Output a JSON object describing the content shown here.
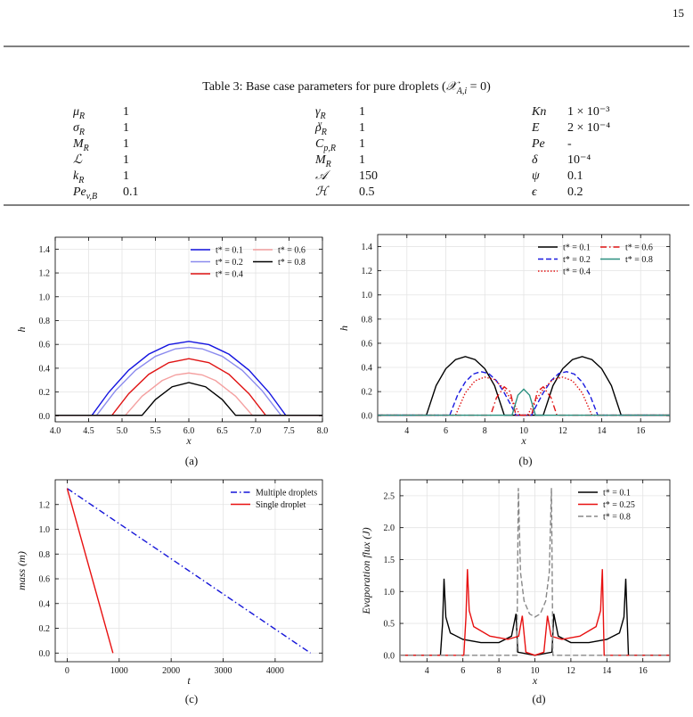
{
  "page_number": "15",
  "table": {
    "caption": {
      "pre": "Table 3: Base case parameters for pure droplets (",
      "sym": "𝒳",
      "sub": "A,i",
      "post": " = 0)"
    },
    "rows": [
      [
        {
          "sym": "μ",
          "sub": "R",
          "value": "1"
        },
        {
          "sym": "γ",
          "sub": "R",
          "value": "1"
        },
        {
          "sym": "Kn",
          "value": "1 × 10⁻³"
        }
      ],
      [
        {
          "sym": "σ",
          "sub": "R",
          "value": "1"
        },
        {
          "sym": "ρ",
          "sub": "R",
          "sup": "v",
          "value": "1"
        },
        {
          "sym": "E",
          "value": "2 × 10⁻⁴"
        }
      ],
      [
        {
          "sym": "M",
          "sub": "R",
          "value": "1"
        },
        {
          "sym": "C",
          "sub": "p,R",
          "value": "1"
        },
        {
          "sym": "Pe",
          "value": "-"
        }
      ],
      [
        {
          "sym": "ℒ",
          "value": "1"
        },
        {
          "sym": "M",
          "sub": "R",
          "value": "1"
        },
        {
          "sym": "δ",
          "value": "10⁻⁴"
        }
      ],
      [
        {
          "sym": "k",
          "sub": "R",
          "value": "1"
        },
        {
          "sym": "𝒜",
          "value": "150"
        },
        {
          "sym": "ψ",
          "value": "0.1"
        }
      ],
      [
        {
          "sym": "Pe",
          "sub": "v,B",
          "value": "0.1"
        },
        {
          "sym": "ℋ",
          "value": "0.5"
        },
        {
          "sym": "ϵ",
          "value": "0.2"
        }
      ]
    ]
  },
  "chart_data": [
    {
      "type": "line",
      "caption": "(a)",
      "x_label": "x",
      "y_label": "h",
      "grid": true,
      "xlim": [
        4,
        8
      ],
      "ylim": [
        -0.05,
        1.5
      ],
      "xticks": [
        {
          "value": 4,
          "label": "4.0"
        },
        4.5,
        {
          "value": 5,
          "label": "5.0"
        },
        5.5,
        {
          "value": 6,
          "label": "6.0"
        },
        6.5,
        {
          "value": 7,
          "label": "7.0"
        },
        7.5,
        {
          "value": 8,
          "label": "8.0"
        }
      ],
      "yticks": [
        {
          "value": 0,
          "label": "0.0"
        },
        0.2,
        0.4,
        0.6,
        0.8,
        {
          "value": 1,
          "label": "1.0"
        },
        1.2,
        1.4
      ],
      "legend_loc": "upper right",
      "legend_ncol": 2,
      "series": [
        {
          "name": "t* = 0.1",
          "color": "#1414e0",
          "linestyle": "solid",
          "x": [
            4,
            4.55,
            4.8,
            5.1,
            5.4,
            5.7,
            6,
            6.3,
            6.6,
            6.9,
            7.2,
            7.45,
            8
          ],
          "values": [
            0.005,
            0.005,
            0.197,
            0.384,
            0.518,
            0.598,
            0.625,
            0.598,
            0.518,
            0.384,
            0.197,
            0.005,
            0.005
          ]
        },
        {
          "name": "t* = 0.2",
          "color": "#8a8aee",
          "linestyle": "solid",
          "x": [
            4,
            4.62,
            4.9,
            5.2,
            5.5,
            5.8,
            6,
            6.2,
            6.5,
            6.8,
            7.1,
            7.38,
            8
          ],
          "values": [
            0.005,
            0.005,
            0.21,
            0.382,
            0.5,
            0.563,
            0.575,
            0.563,
            0.5,
            0.382,
            0.21,
            0.005,
            0.005
          ]
        },
        {
          "name": "t* = 0.4",
          "color": "#e01414",
          "linestyle": "solid",
          "x": [
            4,
            4.85,
            5.1,
            5.4,
            5.7,
            6,
            6.3,
            6.6,
            6.9,
            7.15,
            8
          ],
          "values": [
            0.005,
            0.005,
            0.186,
            0.349,
            0.447,
            0.48,
            0.447,
            0.349,
            0.186,
            0.005,
            0.005
          ]
        },
        {
          "name": "t* = 0.6",
          "color": "#f4a0a0",
          "linestyle": "solid",
          "x": [
            4,
            5.05,
            5.3,
            5.6,
            5.8,
            6,
            6.2,
            6.4,
            6.7,
            6.95,
            8
          ],
          "values": [
            0.005,
            0.005,
            0.165,
            0.296,
            0.344,
            0.36,
            0.344,
            0.296,
            0.165,
            0.005,
            0.005
          ]
        },
        {
          "name": "t* = 0.8",
          "color": "#000000",
          "linestyle": "solid",
          "x": [
            4,
            5.3,
            5.5,
            5.75,
            6,
            6.25,
            6.5,
            6.7,
            8
          ],
          "values": [
            0.005,
            0.005,
            0.137,
            0.244,
            0.28,
            0.244,
            0.137,
            0.005,
            0.005
          ]
        }
      ]
    },
    {
      "type": "line",
      "caption": "(b)",
      "x_label": "x",
      "y_label": "h",
      "grid": true,
      "xlim": [
        2.5,
        17.5
      ],
      "ylim": [
        -0.05,
        1.5
      ],
      "xticks": [
        4,
        6,
        8,
        10,
        12,
        14,
        16
      ],
      "yticks": [
        {
          "value": 0,
          "label": "0.0"
        },
        0.2,
        0.4,
        0.6,
        0.8,
        {
          "value": 1,
          "label": "1.0"
        },
        1.2,
        1.4
      ],
      "legend_loc": "upper right",
      "legend_ncol": 2,
      "series": [
        {
          "name": "t* = 0.1",
          "color": "#000000",
          "linestyle": "solid",
          "x": [
            2.5,
            5,
            5.5,
            6,
            6.5,
            7,
            7.5,
            8,
            8.5,
            9,
            11,
            11.5,
            12,
            12.5,
            13,
            13.5,
            14,
            14.5,
            15,
            17.5
          ],
          "values": [
            0.005,
            0.005,
            0.25,
            0.39,
            0.465,
            0.49,
            0.465,
            0.39,
            0.25,
            0.005,
            0.005,
            0.25,
            0.39,
            0.465,
            0.49,
            0.465,
            0.39,
            0.25,
            0.005,
            0.005
          ]
        },
        {
          "name": "t* = 0.2",
          "color": "#1a1adf",
          "linestyle": "dashed",
          "x": [
            2.5,
            6.2,
            6.6,
            7,
            7.4,
            7.8,
            8.2,
            8.6,
            9,
            9.4,
            9.6,
            10.4,
            10.6,
            11,
            11.4,
            11.8,
            12.2,
            12.6,
            13,
            13.4,
            13.8,
            17.5
          ],
          "values": [
            0.005,
            0.005,
            0.17,
            0.28,
            0.345,
            0.365,
            0.35,
            0.29,
            0.19,
            0.07,
            0.005,
            0.005,
            0.07,
            0.19,
            0.29,
            0.35,
            0.365,
            0.345,
            0.28,
            0.17,
            0.005,
            0.005
          ]
        },
        {
          "name": "t* = 0.4",
          "color": "#e01414",
          "linestyle": "dotted",
          "x": [
            2.5,
            6.5,
            7,
            7.5,
            8,
            8.5,
            9,
            9.5,
            9.8,
            10.2,
            10.5,
            11,
            11.5,
            12,
            12.5,
            13,
            13.5,
            17.5
          ],
          "values": [
            0.005,
            0.005,
            0.19,
            0.29,
            0.32,
            0.3,
            0.22,
            0.1,
            0.005,
            0.005,
            0.1,
            0.22,
            0.3,
            0.32,
            0.29,
            0.19,
            0.005,
            0.005
          ]
        },
        {
          "name": "t* = 0.6",
          "color": "#e01414",
          "linestyle": "dashdot",
          "x": [
            2.5,
            8.3,
            8.6,
            9,
            9.3,
            9.6,
            10.4,
            10.7,
            11,
            11.4,
            11.7,
            17.5
          ],
          "values": [
            0.005,
            0.005,
            0.15,
            0.24,
            0.2,
            0.005,
            0.005,
            0.2,
            0.24,
            0.15,
            0.005,
            0.005
          ]
        },
        {
          "name": "t* = 0.8",
          "color": "#2a9080",
          "linestyle": "solid",
          "x": [
            2.5,
            9.4,
            9.7,
            10,
            10.3,
            10.6,
            17.5
          ],
          "values": [
            0.005,
            0.005,
            0.17,
            0.22,
            0.17,
            0.005,
            0.005
          ]
        }
      ]
    },
    {
      "type": "line",
      "caption": "(c)",
      "x_label": "t",
      "y_label": "mass (m)",
      "grid": true,
      "xlim": [
        -230,
        4910
      ],
      "ylim": [
        -0.07,
        1.4
      ],
      "xticks": [
        0,
        1000,
        2000,
        3000,
        4000
      ],
      "yticks": [
        {
          "value": 0,
          "label": "0.0"
        },
        0.2,
        0.4,
        0.6,
        0.8,
        {
          "value": 1,
          "label": "1.0"
        },
        1.2
      ],
      "legend_loc": "upper right",
      "legend_ncol": 1,
      "series": [
        {
          "name": "Multiple droplets",
          "color": "#1515d8",
          "linestyle": "dashdot",
          "x": [
            0,
            4680
          ],
          "values": [
            1.33,
            0
          ]
        },
        {
          "name": "Single droplet",
          "color": "#e81010",
          "linestyle": "solid",
          "x": [
            0,
            880
          ],
          "values": [
            1.33,
            0
          ]
        }
      ]
    },
    {
      "type": "line",
      "caption": "(d)",
      "x_label": "x",
      "y_label": "Evaporation flux (J)",
      "grid": true,
      "xlim": [
        2.5,
        17.5
      ],
      "ylim": [
        -0.1,
        2.75
      ],
      "xticks": [
        4,
        6,
        8,
        10,
        12,
        14,
        16
      ],
      "yticks": [
        {
          "value": 0,
          "label": "0.0"
        },
        0.5,
        {
          "value": 1,
          "label": "1.0"
        },
        1.5,
        {
          "value": 2,
          "label": "2.0"
        },
        2.5
      ],
      "legend_loc": "upper right",
      "legend_ncol": 1,
      "series": [
        {
          "name": "t* = 0.1",
          "color": "#000000",
          "linestyle": "solid",
          "x": [
            2.5,
            4.75,
            4.87,
            4.95,
            5.05,
            5.3,
            6,
            7,
            8,
            8.7,
            8.95,
            9.05,
            10,
            10.95,
            11.05,
            11.3,
            12,
            13,
            14,
            14.7,
            14.95,
            15.05,
            15.2,
            17.5
          ],
          "values": [
            0,
            0,
            0.5,
            1.2,
            0.6,
            0.35,
            0.25,
            0.2,
            0.2,
            0.3,
            0.65,
            0.05,
            0,
            0.05,
            0.65,
            0.3,
            0.2,
            0.2,
            0.25,
            0.35,
            0.6,
            1.2,
            0,
            0
          ]
        },
        {
          "name": "t* = 0.25",
          "color": "#e81010",
          "linestyle": "solid",
          "x": [
            2.5,
            6.05,
            6.17,
            6.25,
            6.35,
            6.6,
            7.5,
            8.5,
            9.1,
            9.3,
            9.5,
            10,
            10.5,
            10.7,
            10.9,
            11.5,
            12.5,
            13.4,
            13.65,
            13.75,
            13.85,
            17.5
          ],
          "values": [
            0,
            0,
            0.6,
            1.35,
            0.7,
            0.45,
            0.3,
            0.25,
            0.3,
            0.62,
            0.05,
            0,
            0.05,
            0.62,
            0.3,
            0.25,
            0.3,
            0.45,
            0.7,
            1.35,
            0,
            0
          ]
        },
        {
          "name": "t* = 0.8",
          "color": "#888888",
          "linestyle": "dashed",
          "x": [
            2.5,
            9,
            9.08,
            9.2,
            9.4,
            9.7,
            10,
            10.3,
            10.6,
            10.8,
            10.92,
            11,
            17.5
          ],
          "values": [
            0,
            0,
            2.62,
            1.3,
            0.85,
            0.65,
            0.6,
            0.65,
            0.85,
            1.3,
            2.62,
            0,
            0
          ]
        }
      ]
    }
  ]
}
